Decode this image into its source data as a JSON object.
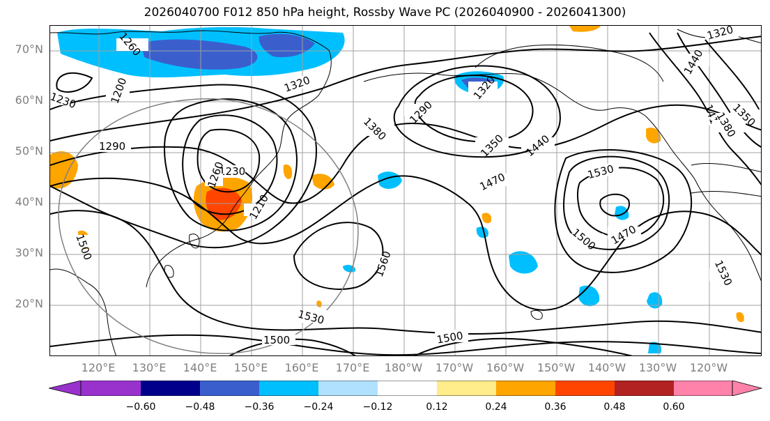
{
  "title": "2026040700 F012 850 hPa height, Rossby Wave PC (2026040900 - 2026041300)",
  "lat_labels": [
    "70°N",
    "60°N",
    "50°N",
    "40°N",
    "30°N",
    "20°N"
  ],
  "lon_labels": [
    "120°E",
    "130°E",
    "140°E",
    "150°E",
    "160°E",
    "170°E",
    "180°W",
    "170°W",
    "160°W",
    "150°W",
    "140°W",
    "130°W",
    "120°W"
  ],
  "contour_labels": [
    "1200",
    "1230",
    "1260",
    "1290",
    "1320",
    "1320",
    "1290",
    "1230",
    "1260",
    "1210",
    "1380",
    "1350",
    "1440",
    "1470",
    "1530",
    "1500",
    "1470",
    "1560",
    "1530",
    "1500",
    "1500",
    "1530",
    "1440",
    "1410",
    "1380",
    "1350",
    "1320",
    "1500"
  ],
  "colorbar": {
    "ticks": [
      "−0.60",
      "−0.48",
      "−0.36",
      "−0.24",
      "−0.12",
      "0.12",
      "0.24",
      "0.36",
      "0.48",
      "0.60"
    ],
    "colors": [
      "#9932cc",
      "#00008b",
      "#3a5fcd",
      "#00bfff",
      "#b0e2ff",
      "#ffffff",
      "#ffec8b",
      "#ffa500",
      "#ff4500",
      "#b22222",
      "#ff82ab"
    ],
    "under_color": "#9932cc",
    "over_color": "#ff82ab"
  }
}
